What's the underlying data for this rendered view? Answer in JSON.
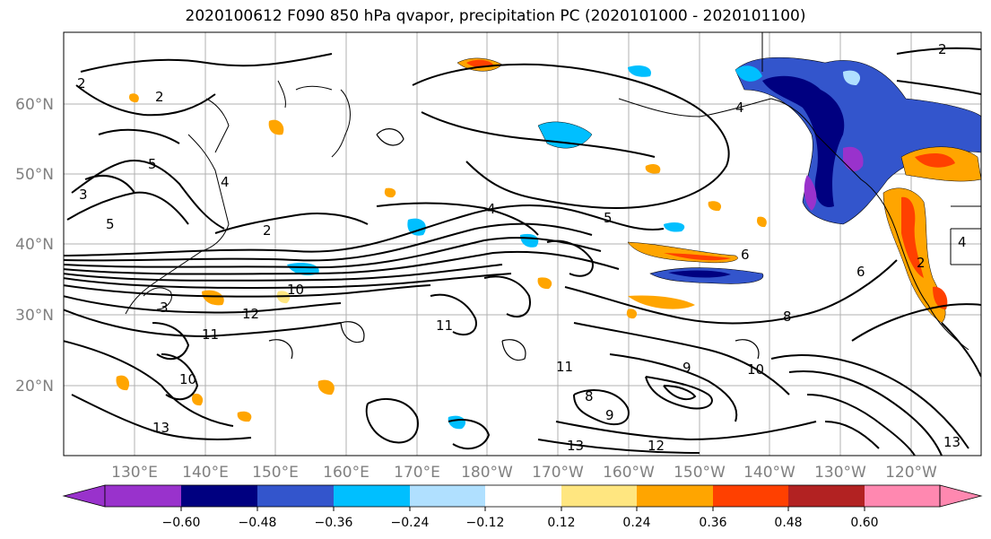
{
  "title": "2020100612 F090 850 hPa qvapor, precipitation PC (2020101000 - 2020101100)",
  "lat_labels": [
    "60°N",
    "50°N",
    "40°N",
    "30°N",
    "20°N"
  ],
  "lon_labels": [
    "130°E",
    "140°E",
    "150°E",
    "160°E",
    "170°E",
    "180°W",
    "170°W",
    "160°W",
    "150°W",
    "140°W",
    "130°W",
    "120°W"
  ],
  "colorbar": {
    "colors": [
      "#9932cc",
      "#000080",
      "#3355cc",
      "#00bfff",
      "#b0e0ff",
      "#ffffff",
      "#ffe680",
      "#ffa500",
      "#ff4000",
      "#b22222",
      "#ff88b0"
    ],
    "ticks": [
      "−0.60",
      "−0.48",
      "−0.36",
      "−0.24",
      "−0.12",
      "0.12",
      "0.24",
      "0.36",
      "0.48",
      "0.60"
    ]
  },
  "contour_labels": [
    "2",
    "2",
    "5",
    "3",
    "5",
    "4",
    "2",
    "4",
    "5",
    "6",
    "2",
    "4",
    "10",
    "12",
    "3",
    "11",
    "11",
    "10",
    "13",
    "11",
    "8",
    "9",
    "13",
    "12",
    "9",
    "10",
    "6",
    "8",
    "13",
    "4",
    "2"
  ]
}
